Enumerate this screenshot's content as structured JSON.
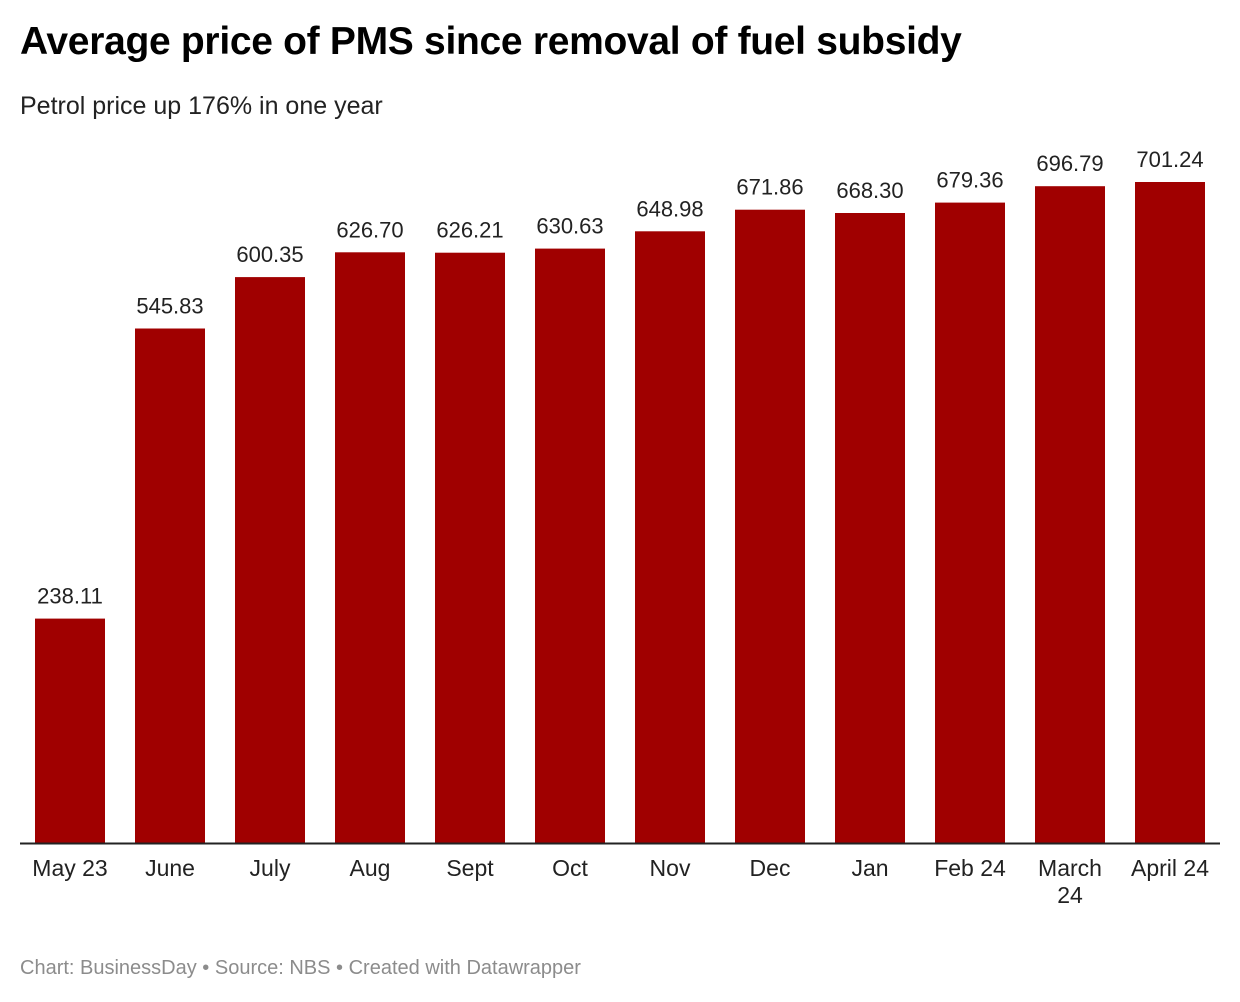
{
  "header": {
    "title": "Average price of PMS since removal of fuel subsidy",
    "subtitle": "Petrol price up 176% in one year"
  },
  "footer": {
    "credit": "Chart: BusinessDay",
    "separator1": " • ",
    "source": "Source: NBS",
    "separator2": " • ",
    "tool": "Created with Datawrapper"
  },
  "colors": {
    "bar": "#a00000",
    "axis": "#222222"
  },
  "chart_data": {
    "type": "bar",
    "title": "Average price of PMS since removal of fuel subsidy",
    "subtitle": "Petrol price up 176% in one year",
    "xlabel": "",
    "ylabel": "",
    "ylim": [
      0,
      701.24
    ],
    "grid": false,
    "categories": [
      [
        "May 23"
      ],
      [
        "June"
      ],
      [
        "July"
      ],
      [
        "Aug"
      ],
      [
        "Sept"
      ],
      [
        "Oct"
      ],
      [
        "Nov"
      ],
      [
        "Dec"
      ],
      [
        "Jan"
      ],
      [
        "Feb 24"
      ],
      [
        "March",
        "24"
      ],
      [
        "April 24"
      ]
    ],
    "values": [
      238.11,
      545.83,
      600.35,
      626.7,
      626.21,
      630.63,
      648.98,
      671.86,
      668.3,
      679.36,
      696.79,
      701.24
    ],
    "value_labels": [
      "238.11",
      "545.83",
      "600.35",
      "626.70",
      "626.21",
      "630.63",
      "648.98",
      "671.86",
      "668.30",
      "679.36",
      "696.79",
      "701.24"
    ]
  }
}
